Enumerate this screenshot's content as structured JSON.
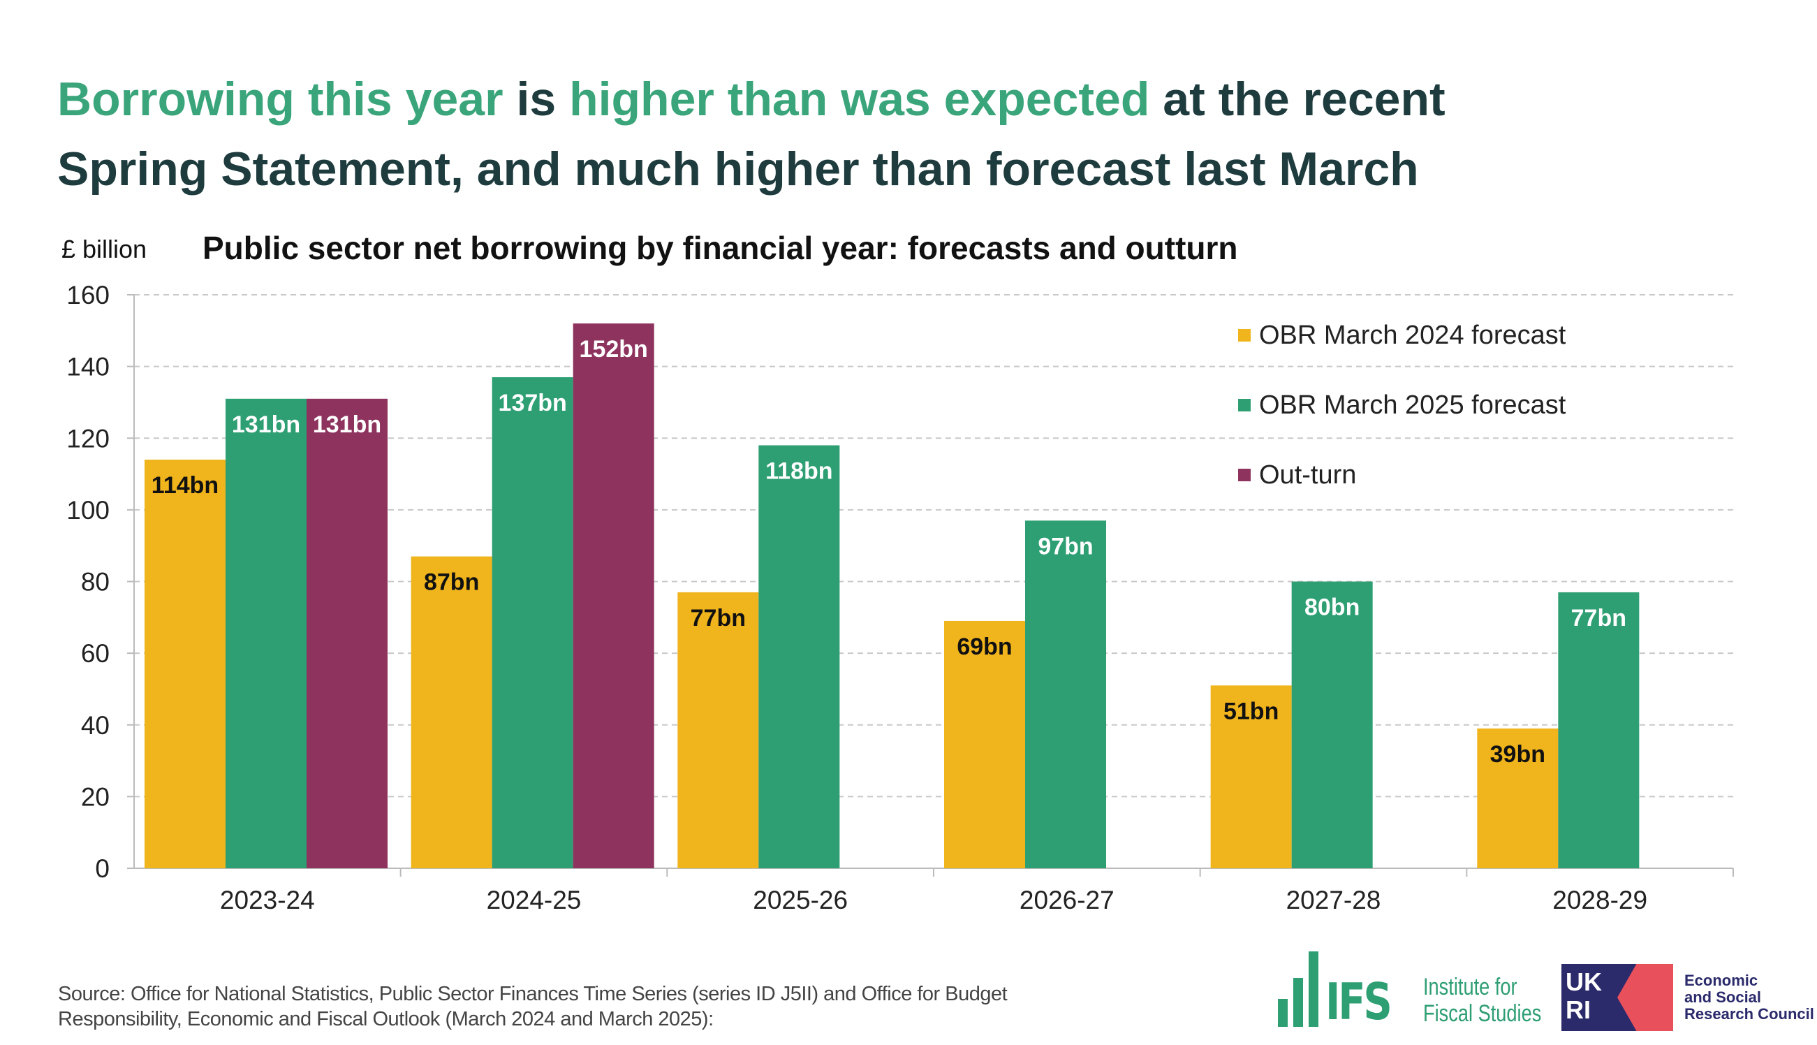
{
  "headline": {
    "part1": "Borrowing this year",
    "part2": " is ",
    "part3": "higher than was expected",
    "part4": " at the recent",
    "line2": "Spring Statement, and much higher than forecast last March"
  },
  "colors": {
    "march2024": "#f0b41c",
    "march2025": "#2e9e73",
    "outturn": "#8e325e",
    "accent": "#3aa57a"
  },
  "chart_data": {
    "type": "bar",
    "title": "Public sector net borrowing by financial year: forecasts and outturn",
    "ylabel": "£ billion",
    "xlabel": "",
    "ylim": [
      0,
      160
    ],
    "yticks": [
      0,
      20,
      40,
      60,
      80,
      100,
      120,
      140,
      160
    ],
    "grid": true,
    "legend_position": "top-right",
    "categories": [
      "2023-24",
      "2024-25",
      "2025-26",
      "2026-27",
      "2027-28",
      "2028-29"
    ],
    "series": [
      {
        "name": "OBR March 2024 forecast",
        "values": [
          114,
          87,
          77,
          69,
          51,
          39
        ],
        "labels": [
          "114bn",
          "87bn",
          "77bn",
          "69bn",
          "51bn",
          "39bn"
        ]
      },
      {
        "name": "OBR March 2025 forecast",
        "values": [
          131,
          137,
          118,
          97,
          80,
          77
        ],
        "labels": [
          "131bn",
          "137bn",
          "118bn",
          "97bn",
          "80bn",
          "77bn"
        ]
      },
      {
        "name": "Out-turn",
        "values": [
          131,
          152,
          null,
          null,
          null,
          null
        ],
        "labels": [
          "131bn",
          "152bn",
          null,
          null,
          null,
          null
        ]
      }
    ]
  },
  "footer": {
    "source_line1": "Source: Office for National Statistics, Public Sector Finances Time Series (series ID J5II) and Office for Budget",
    "source_line2": "Responsibility, Economic and Fiscal Outlook (March 2024 and March 2025):",
    "ifs_mark": "IFS",
    "ifs_name1": "Institute for",
    "ifs_name2": "Fiscal Studies",
    "ukri_mark": "UKRI",
    "esrc1": "Economic",
    "esrc2": "and Social",
    "esrc3": "Research Council"
  }
}
